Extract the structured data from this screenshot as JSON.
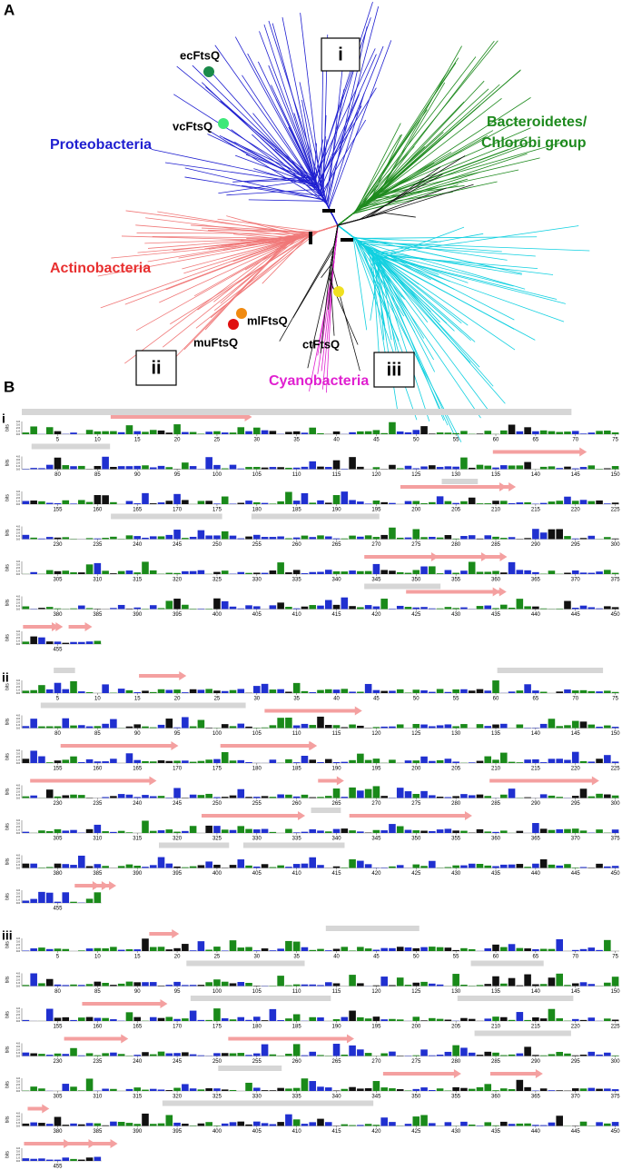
{
  "panel_a": {
    "label": "A",
    "clades": [
      {
        "name": [
          "Proteobacteria"
        ],
        "color": "#1f1fd0"
      },
      {
        "name": [
          "Bacteroidetes/",
          "Chlorobi group"
        ],
        "color": "#1e8a1e"
      },
      {
        "name": [
          "Actinobacteria"
        ],
        "color": "#e83030"
      },
      {
        "name": [
          "Cyanobacteria"
        ],
        "color": "#e020d0"
      }
    ],
    "proteins": [
      {
        "name": "ecFtsQ",
        "color": "#1a8a4a"
      },
      {
        "name": "vcFtsQ",
        "color": "#3ee87a"
      },
      {
        "name": "mlFtsQ",
        "color": "#f08a10"
      },
      {
        "name": "muFtsQ",
        "color": "#e01010"
      },
      {
        "name": "ctFtsQ",
        "color": "#f0e020"
      }
    ],
    "regions": [
      "i",
      "ii",
      "iii"
    ]
  },
  "panel_b": {
    "label": "B",
    "sections": [
      "i",
      "ii",
      "iii"
    ],
    "y_label": "bits",
    "y_ticks": [
      "4.0",
      "3.0",
      "2.0",
      "1.0",
      "0.0"
    ],
    "position_rows": [
      [
        5,
        10,
        15,
        20,
        25,
        30,
        35,
        40,
        45,
        50,
        55,
        60,
        65,
        70,
        75
      ],
      [
        80,
        85,
        90,
        95,
        100,
        105,
        110,
        115,
        120,
        125,
        130,
        135,
        140,
        145,
        150
      ],
      [
        155,
        160,
        165,
        170,
        175,
        180,
        185,
        190,
        195,
        200,
        205,
        210,
        215,
        220,
        225
      ],
      [
        230,
        235,
        240,
        245,
        250,
        255,
        260,
        265,
        270,
        275,
        280,
        285,
        290,
        295,
        300
      ],
      [
        305,
        310,
        315,
        320,
        325,
        330,
        335,
        340,
        345,
        350,
        355,
        360,
        365,
        370,
        375
      ],
      [
        380,
        385,
        390,
        395,
        400,
        405,
        410,
        415,
        420,
        425,
        430,
        435,
        440,
        445,
        450
      ],
      [
        455
      ]
    ]
  }
}
